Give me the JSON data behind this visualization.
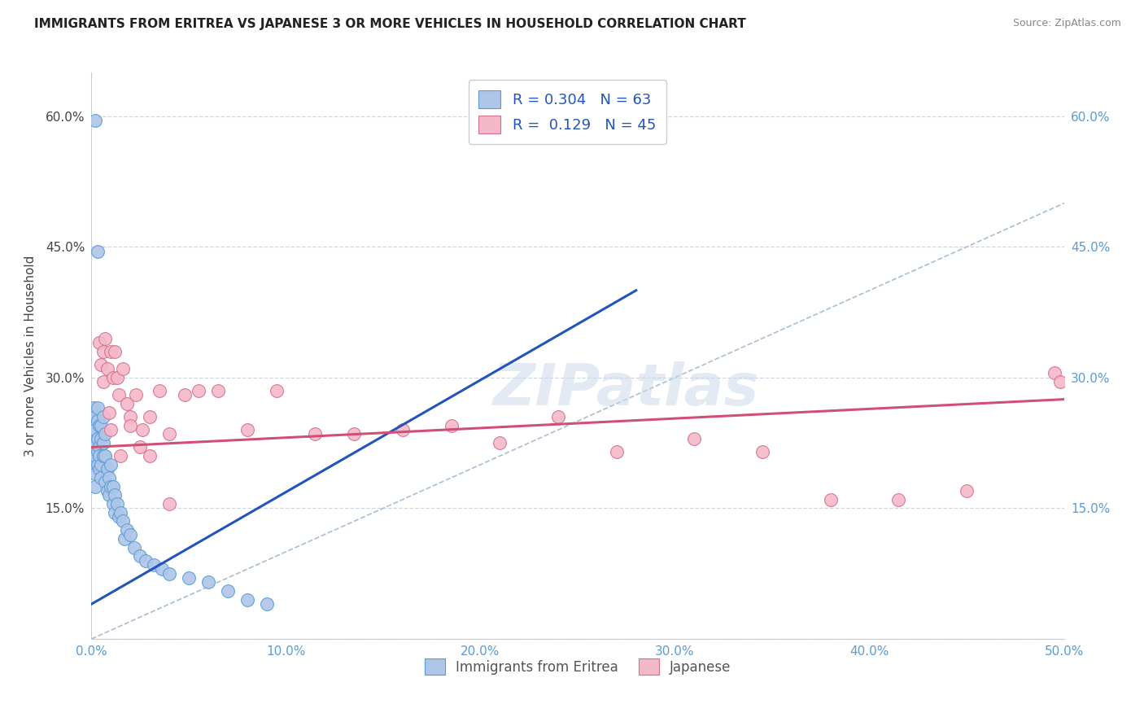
{
  "title": "IMMIGRANTS FROM ERITREA VS JAPANESE 3 OR MORE VEHICLES IN HOUSEHOLD CORRELATION CHART",
  "source": "Source: ZipAtlas.com",
  "ylabel": "3 or more Vehicles in Household",
  "xlim": [
    0.0,
    0.5
  ],
  "ylim": [
    0.0,
    0.65
  ],
  "xticks": [
    0.0,
    0.1,
    0.2,
    0.3,
    0.4,
    0.5
  ],
  "yticks": [
    0.0,
    0.15,
    0.3,
    0.45,
    0.6
  ],
  "ytick_labels_left": [
    "",
    "15.0%",
    "30.0%",
    "45.0%",
    "60.0%"
  ],
  "xtick_labels": [
    "0.0%",
    "10.0%",
    "20.0%",
    "30.0%",
    "40.0%",
    "50.0%"
  ],
  "ytick_labels_right": [
    "",
    "15.0%",
    "30.0%",
    "45.0%",
    "60.0%"
  ],
  "R_blue": 0.304,
  "N_blue": 63,
  "R_pink": 0.129,
  "N_pink": 45,
  "color_blue_fill": "#aec6e8",
  "color_blue_edge": "#5b9bd5",
  "color_pink_fill": "#f4b8c8",
  "color_pink_edge": "#d47090",
  "color_blue_line": "#2255bb",
  "color_pink_line": "#d05075",
  "color_diag": "#a0b8d0",
  "watermark_text": "ZIPatlas",
  "blue_line_x0": 0.0,
  "blue_line_y0": 0.04,
  "blue_line_x1": 0.28,
  "blue_line_y1": 0.4,
  "pink_line_x0": 0.0,
  "pink_line_y0": 0.22,
  "pink_line_x1": 0.5,
  "pink_line_y1": 0.275,
  "blue_points_x": [
    0.001,
    0.001,
    0.001,
    0.001,
    0.001,
    0.001,
    0.001,
    0.002,
    0.002,
    0.002,
    0.002,
    0.002,
    0.002,
    0.002,
    0.003,
    0.003,
    0.003,
    0.003,
    0.003,
    0.004,
    0.004,
    0.004,
    0.004,
    0.005,
    0.005,
    0.005,
    0.005,
    0.006,
    0.006,
    0.006,
    0.007,
    0.007,
    0.007,
    0.008,
    0.008,
    0.009,
    0.009,
    0.01,
    0.01,
    0.011,
    0.011,
    0.012,
    0.012,
    0.013,
    0.014,
    0.015,
    0.016,
    0.017,
    0.018,
    0.02,
    0.022,
    0.025,
    0.028,
    0.032,
    0.036,
    0.04,
    0.05,
    0.06,
    0.07,
    0.08,
    0.09,
    0.002,
    0.003
  ],
  "blue_points_y": [
    0.215,
    0.23,
    0.25,
    0.265,
    0.245,
    0.2,
    0.235,
    0.22,
    0.24,
    0.255,
    0.21,
    0.225,
    0.19,
    0.175,
    0.23,
    0.215,
    0.25,
    0.2,
    0.265,
    0.22,
    0.195,
    0.245,
    0.21,
    0.23,
    0.185,
    0.2,
    0.245,
    0.21,
    0.225,
    0.255,
    0.235,
    0.18,
    0.21,
    0.17,
    0.195,
    0.185,
    0.165,
    0.175,
    0.2,
    0.175,
    0.155,
    0.165,
    0.145,
    0.155,
    0.14,
    0.145,
    0.135,
    0.115,
    0.125,
    0.12,
    0.105,
    0.095,
    0.09,
    0.085,
    0.08,
    0.075,
    0.07,
    0.065,
    0.055,
    0.045,
    0.04,
    0.595,
    0.445
  ],
  "pink_points_x": [
    0.004,
    0.005,
    0.006,
    0.006,
    0.007,
    0.008,
    0.009,
    0.01,
    0.011,
    0.012,
    0.013,
    0.014,
    0.016,
    0.018,
    0.02,
    0.023,
    0.026,
    0.03,
    0.035,
    0.04,
    0.048,
    0.055,
    0.065,
    0.08,
    0.095,
    0.115,
    0.135,
    0.16,
    0.185,
    0.21,
    0.24,
    0.27,
    0.31,
    0.345,
    0.38,
    0.415,
    0.45,
    0.01,
    0.015,
    0.02,
    0.025,
    0.03,
    0.04,
    0.495,
    0.498
  ],
  "pink_points_y": [
    0.34,
    0.315,
    0.33,
    0.295,
    0.345,
    0.31,
    0.26,
    0.33,
    0.3,
    0.33,
    0.3,
    0.28,
    0.31,
    0.27,
    0.255,
    0.28,
    0.24,
    0.255,
    0.285,
    0.235,
    0.28,
    0.285,
    0.285,
    0.24,
    0.285,
    0.235,
    0.235,
    0.24,
    0.245,
    0.225,
    0.255,
    0.215,
    0.23,
    0.215,
    0.16,
    0.16,
    0.17,
    0.24,
    0.21,
    0.245,
    0.22,
    0.21,
    0.155,
    0.305,
    0.295
  ]
}
